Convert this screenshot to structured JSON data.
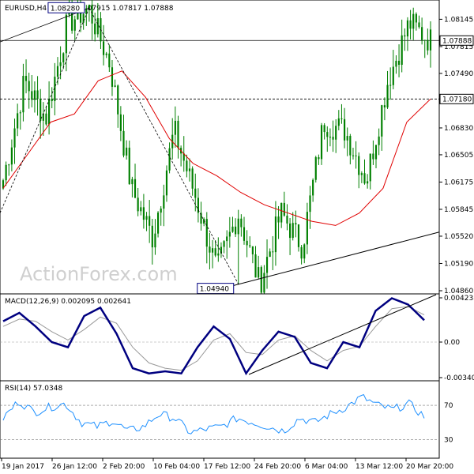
{
  "main_panel": {
    "header": {
      "symbol": "EURUSD,H4",
      "ohlc": "1.07847 1.07915 1.07817 1.07888"
    },
    "watermark": "ActionForex.com",
    "price_ticks": [
      "1.08145",
      "1.07815",
      "1.07490",
      "1.07160",
      "1.06830",
      "1.06505",
      "1.06175",
      "1.05845",
      "1.05520",
      "1.05190",
      "1.04860"
    ],
    "levels": [
      {
        "value": 1.07888,
        "label": "1.07888",
        "style": "solid"
      },
      {
        "value": 1.0718,
        "label": "1.07180",
        "style": "dashed"
      }
    ],
    "annotations": [
      {
        "label": "1.08280"
      },
      {
        "label": "1.04940"
      }
    ]
  },
  "macd_panel": {
    "label": "MACD(12,26,9) 0.002095 0.002641",
    "ticks": [
      "0.004238",
      "0.00",
      "-0.003404"
    ]
  },
  "rsi_panel": {
    "label": "RSI(14) 57.0348",
    "ticks": [
      "70",
      "30"
    ]
  },
  "x_axis": {
    "labels": [
      "19 Jan 2017",
      "26 Jan 12:00",
      "2 Feb 20:00",
      "10 Feb 04:00",
      "17 Feb 12:00",
      "24 Feb 20:00",
      "6 Mar 04:00",
      "13 Mar 12:00",
      "20 Mar 20:00"
    ]
  },
  "colors": {
    "candles": "#008000",
    "ma": "#e00000",
    "macd": "#000080",
    "signal": "#999999",
    "rsi": "#1e90ff",
    "grid": "#000000",
    "trendline": "#000000"
  },
  "chart_data": [
    {
      "type": "candlestick",
      "title": "EURUSD,H4",
      "ylim": [
        1.0486,
        1.0834
      ],
      "key_points": [
        {
          "x": "19 Jan 2017",
          "close": 1.062
        },
        {
          "x": "23 Jan",
          "close": 1.074
        },
        {
          "x": "26 Jan 12:00",
          "close": 1.0695
        },
        {
          "x": "31 Jan",
          "close": 1.081
        },
        {
          "x": "1 Feb",
          "high": 1.0828
        },
        {
          "x": "2 Feb 20:00",
          "close": 1.076
        },
        {
          "x": "10 Feb 04:00",
          "close": 1.061
        },
        {
          "x": "15 Feb",
          "close": 1.055
        },
        {
          "x": "16 Feb",
          "close": 1.068
        },
        {
          "x": "17 Feb 12:00",
          "close": 1.06
        },
        {
          "x": "21 Feb",
          "close": 1.051
        },
        {
          "x": "24 Feb 20:00",
          "close": 1.058
        },
        {
          "x": "1 Mar",
          "low": 1.0494
        },
        {
          "x": "6 Mar 04:00",
          "close": 1.058
        },
        {
          "x": "8 Mar",
          "close": 1.054
        },
        {
          "x": "9 Mar",
          "close": 1.069
        },
        {
          "x": "13 Mar 12:00",
          "close": 1.068
        },
        {
          "x": "15 Mar",
          "close": 1.062
        },
        {
          "x": "16 Mar",
          "close": 1.074
        },
        {
          "x": "20 Mar 20:00",
          "close": 1.081
        },
        {
          "x": "22 Mar",
          "close": 1.07888
        }
      ],
      "series": [
        {
          "name": "MA",
          "values": [
            1.061,
            1.065,
            1.069,
            1.07,
            1.074,
            1.0752,
            1.072,
            1.067,
            1.064,
            1.0625,
            1.0605,
            1.059,
            1.058,
            1.057,
            1.0565,
            1.058,
            1.061,
            1.069,
            1.0718
          ]
        }
      ]
    },
    {
      "type": "line",
      "title": "MACD(12,26,9) 0.002095 0.002641",
      "ylim": [
        -0.003404,
        0.004238
      ],
      "series": [
        {
          "name": "MACD",
          "values": [
            0.002,
            0.0028,
            0.0015,
            0.0,
            -0.0005,
            0.0025,
            0.0033,
            0.0008,
            -0.0025,
            -0.003,
            -0.0028,
            -0.003,
            -0.0005,
            0.0015,
            0.0003,
            -0.003,
            -0.0008,
            0.001,
            0.0005,
            -0.002,
            -0.0025,
            0.0,
            -0.0005,
            0.003,
            0.0042,
            0.0036,
            0.0021
          ]
        },
        {
          "name": "Signal",
          "values": [
            0.0015,
            0.0022,
            0.002,
            0.001,
            0.0002,
            0.0012,
            0.0024,
            0.0018,
            -0.0005,
            -0.002,
            -0.0025,
            -0.0027,
            -0.0018,
            0.0002,
            0.0008,
            -0.001,
            -0.0012,
            0.0002,
            0.0006,
            -0.0008,
            -0.0018,
            -0.0008,
            -0.0004,
            0.0015,
            0.0032,
            0.0034,
            0.0026
          ]
        }
      ]
    },
    {
      "type": "line",
      "title": "RSI(14) 57.0348",
      "ylim": [
        0,
        100
      ],
      "series": [
        {
          "name": "RSI",
          "values": [
            55,
            75,
            62,
            68,
            72,
            50,
            45,
            52,
            40,
            45,
            60,
            55,
            38,
            42,
            45,
            55,
            50,
            45,
            40,
            55,
            50,
            60,
            68,
            80,
            70,
            65,
            72,
            57
          ]
        }
      ]
    }
  ]
}
